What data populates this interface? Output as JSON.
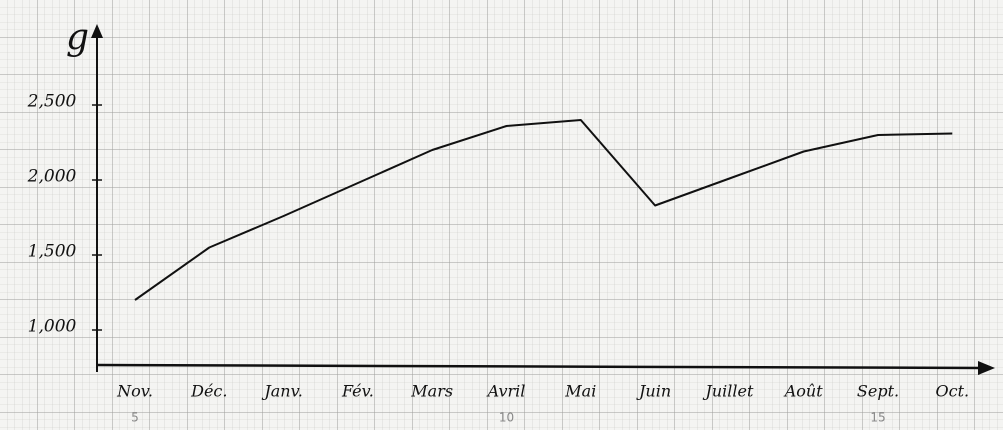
{
  "chart_data": {
    "type": "line",
    "title": "g",
    "categories": [
      "Nov.",
      "Déc.",
      "Janv.",
      "Fév.",
      "Mars",
      "Avril",
      "Mai",
      "Juin",
      "Juillet",
      "Août",
      "Sept.",
      "Oct."
    ],
    "series": [
      {
        "color": "#111111",
        "values": [
          1200,
          1550,
          1760,
          1980,
          2200,
          2360,
          2400,
          1830,
          2010,
          2190,
          2300,
          2310
        ]
      }
    ],
    "ylim": [
      750,
      3000
    ],
    "yticks": [
      {
        "value": 1000,
        "label": "1,000"
      },
      {
        "value": 1500,
        "label": "1,500"
      },
      {
        "value": 2000,
        "label": "2,000"
      },
      {
        "value": 2500,
        "label": "2,500"
      }
    ],
    "annotations": [
      {
        "text": "5",
        "at": "Nov."
      },
      {
        "text": "10",
        "at": "Avril"
      },
      {
        "text": "15",
        "at": "Sept."
      }
    ]
  }
}
